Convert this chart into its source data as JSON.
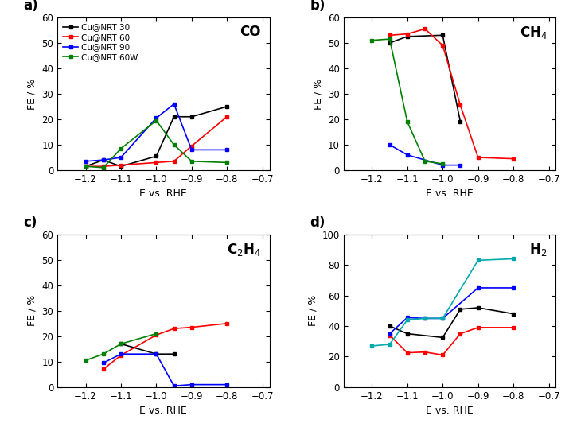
{
  "colors": {
    "black": "#000000",
    "red": "#ff0000",
    "blue": "#0000ff",
    "green": "#008000",
    "teal": "#00aaaa"
  },
  "legend_labels": [
    "Cu@NRT 30",
    "Cu@NRT 60",
    "Cu@NRT 90",
    "Cu@NRT 60W"
  ],
  "panel_labels": [
    "a)",
    "b)",
    "c)",
    "d)"
  ],
  "xlabel": "E vs. RHE",
  "ylabel": "FE / %",
  "CO": {
    "black": {
      "x": [
        -1.2,
        -1.15,
        -1.1,
        -1.0,
        -0.95,
        -0.9,
        -0.8
      ],
      "y": [
        1.5,
        4.0,
        1.5,
        5.5,
        21.0,
        21.0,
        25.0
      ]
    },
    "red": {
      "x": [
        -1.2,
        -1.15,
        -1.1,
        -1.0,
        -0.95,
        -0.9,
        -0.8
      ],
      "y": [
        1.5,
        1.5,
        2.0,
        3.0,
        3.5,
        9.5,
        21.0
      ]
    },
    "blue": {
      "x": [
        -1.2,
        -1.15,
        -1.1,
        -1.0,
        -0.95,
        -0.9,
        -0.8
      ],
      "y": [
        3.5,
        4.0,
        5.0,
        20.5,
        26.0,
        8.0,
        8.0
      ]
    },
    "green": {
      "x": [
        -1.2,
        -1.15,
        -1.1,
        -1.0,
        -0.95,
        -0.9,
        -0.8
      ],
      "y": [
        1.5,
        1.0,
        8.5,
        19.5,
        10.0,
        3.5,
        3.0
      ]
    },
    "ylim": [
      0,
      60
    ],
    "yticks": [
      0,
      10,
      20,
      30,
      40,
      50,
      60
    ]
  },
  "CH4": {
    "black": {
      "x": [
        -1.15,
        -1.1,
        -1.0,
        -0.95
      ],
      "y": [
        50.0,
        52.5,
        53.0,
        19.0
      ]
    },
    "red": {
      "x": [
        -1.15,
        -1.1,
        -1.05,
        -1.0,
        -0.95,
        -0.9,
        -0.8
      ],
      "y": [
        53.0,
        53.5,
        55.5,
        49.0,
        25.5,
        5.0,
        4.5
      ]
    },
    "blue": {
      "x": [
        -1.15,
        -1.1,
        -1.0,
        -0.95
      ],
      "y": [
        10.0,
        6.0,
        2.0,
        2.0
      ]
    },
    "green": {
      "x": [
        -1.2,
        -1.15,
        -1.1,
        -1.05,
        -1.0
      ],
      "y": [
        51.0,
        51.5,
        19.0,
        3.5,
        2.5
      ]
    },
    "ylim": [
      0,
      60
    ],
    "yticks": [
      0,
      10,
      20,
      30,
      40,
      50,
      60
    ]
  },
  "C2H4": {
    "black": {
      "x": [
        -1.1,
        -1.0,
        -0.95
      ],
      "y": [
        17.0,
        13.0,
        13.0
      ]
    },
    "red": {
      "x": [
        -1.15,
        -1.1,
        -1.0,
        -0.95,
        -0.9,
        -0.8
      ],
      "y": [
        7.0,
        12.5,
        20.5,
        23.0,
        23.5,
        25.0
      ]
    },
    "blue": {
      "x": [
        -1.15,
        -1.1,
        -1.0,
        -0.95,
        -0.9,
        -0.8
      ],
      "y": [
        9.5,
        13.0,
        13.0,
        0.5,
        1.0,
        1.0
      ]
    },
    "green": {
      "x": [
        -1.2,
        -1.15,
        -1.1,
        -1.0
      ],
      "y": [
        10.5,
        13.0,
        17.0,
        21.0
      ]
    },
    "ylim": [
      0,
      60
    ],
    "yticks": [
      0,
      10,
      20,
      30,
      40,
      50,
      60
    ]
  },
  "H2": {
    "black": {
      "x": [
        -1.15,
        -1.1,
        -1.0,
        -0.95,
        -0.9,
        -0.8
      ],
      "y": [
        40.0,
        35.0,
        32.5,
        51.0,
        52.0,
        48.0
      ]
    },
    "red": {
      "x": [
        -1.15,
        -1.1,
        -1.05,
        -1.0,
        -0.95,
        -0.9,
        -0.8
      ],
      "y": [
        34.0,
        22.5,
        23.0,
        21.0,
        35.0,
        39.0,
        39.0
      ]
    },
    "blue": {
      "x": [
        -1.15,
        -1.1,
        -1.05,
        -1.0,
        -0.9,
        -0.8
      ],
      "y": [
        35.0,
        45.5,
        45.0,
        45.0,
        65.0,
        65.0
      ]
    },
    "teal": {
      "x": [
        -1.2,
        -1.15,
        -1.1,
        -1.05,
        -1.0,
        -0.9,
        -0.8
      ],
      "y": [
        27.0,
        28.0,
        44.0,
        45.0,
        45.0,
        83.0,
        84.0
      ]
    },
    "ylim": [
      0,
      100
    ],
    "yticks": [
      0,
      20,
      40,
      60,
      80,
      100
    ]
  }
}
